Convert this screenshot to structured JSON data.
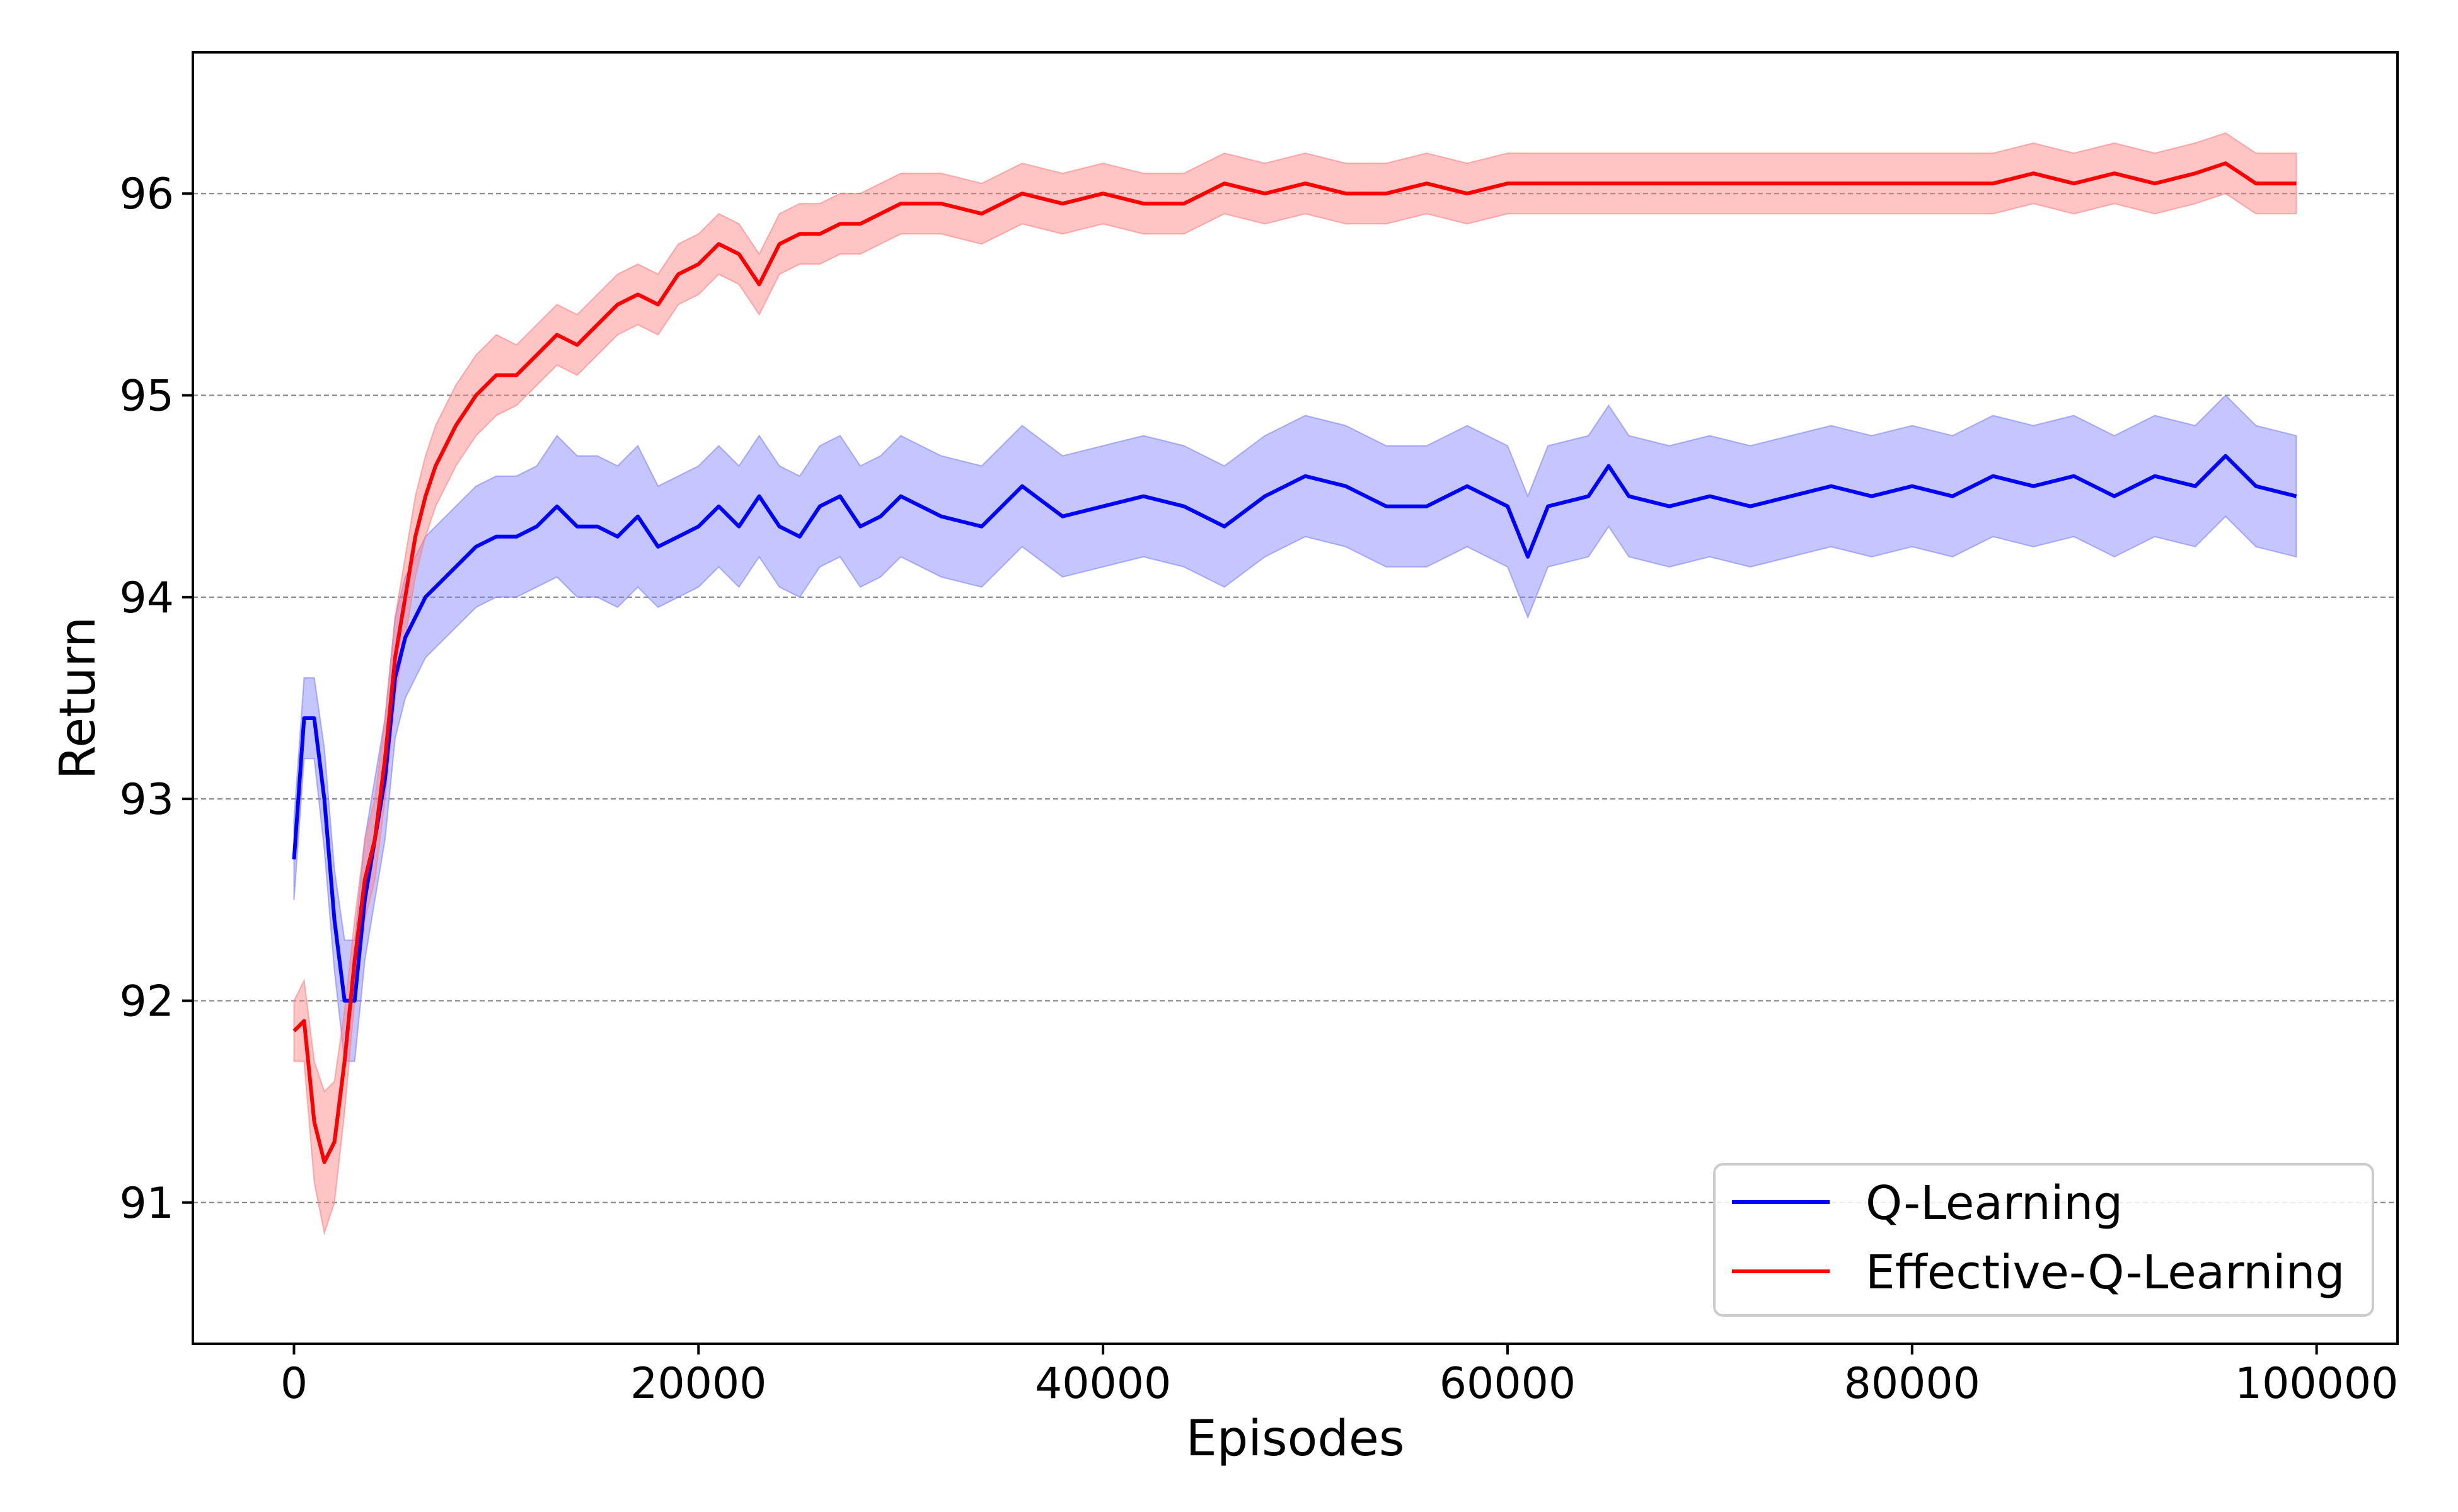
{
  "chart_data": {
    "type": "line",
    "title": "",
    "xlabel": "Episodes",
    "ylabel": "Return",
    "xlim": [
      -5000,
      104000
    ],
    "ylim": [
      90.3,
      96.7
    ],
    "xticks": [
      0,
      20000,
      40000,
      60000,
      80000,
      100000
    ],
    "yticks": [
      91,
      92,
      93,
      94,
      95,
      96
    ],
    "xtick_labels": [
      "0",
      "20000",
      "40000",
      "60000",
      "80000",
      "100000"
    ],
    "ytick_labels": [
      "91",
      "92",
      "93",
      "94",
      "95",
      "96"
    ],
    "grid": "horizontal dashed",
    "legend_position": "lower-right",
    "series": [
      {
        "name": "Q-Learning",
        "color": "#0000ff",
        "band_color": "#7f7fff",
        "x": [
          0,
          500,
          1000,
          1500,
          2000,
          2500,
          3000,
          3500,
          4000,
          4500,
          5000,
          5500,
          6000,
          6500,
          7000,
          8000,
          9000,
          10000,
          11000,
          12000,
          13000,
          14000,
          15000,
          16000,
          17000,
          18000,
          19000,
          20000,
          21000,
          22000,
          23000,
          24000,
          25000,
          26000,
          27000,
          28000,
          29000,
          30000,
          32000,
          34000,
          36000,
          38000,
          40000,
          42000,
          44000,
          46000,
          48000,
          50000,
          52000,
          54000,
          56000,
          58000,
          60000,
          61000,
          62000,
          64000,
          65000,
          66000,
          68000,
          70000,
          72000,
          74000,
          76000,
          78000,
          80000,
          82000,
          84000,
          86000,
          88000,
          90000,
          92000,
          94000,
          95500,
          97000,
          99000
        ],
        "values": [
          92.7,
          93.4,
          93.4,
          93.0,
          92.4,
          92.0,
          92.0,
          92.5,
          92.8,
          93.1,
          93.6,
          93.8,
          93.9,
          94.0,
          94.05,
          94.15,
          94.25,
          94.3,
          94.3,
          94.35,
          94.45,
          94.35,
          94.35,
          94.3,
          94.4,
          94.25,
          94.3,
          94.35,
          94.45,
          94.35,
          94.5,
          94.35,
          94.3,
          94.45,
          94.5,
          94.35,
          94.4,
          94.5,
          94.4,
          94.35,
          94.55,
          94.4,
          94.45,
          94.5,
          94.45,
          94.35,
          94.5,
          94.6,
          94.55,
          94.45,
          94.45,
          94.55,
          94.45,
          94.2,
          94.45,
          94.5,
          94.65,
          94.5,
          94.45,
          94.5,
          94.45,
          94.5,
          94.55,
          94.5,
          94.55,
          94.5,
          94.6,
          94.55,
          94.6,
          94.5,
          94.6,
          94.55,
          94.7,
          94.55,
          94.5
        ],
        "band": [
          0.2,
          0.2,
          0.2,
          0.25,
          0.25,
          0.3,
          0.3,
          0.3,
          0.3,
          0.3,
          0.3,
          0.3,
          0.3,
          0.3,
          0.3,
          0.3,
          0.3,
          0.3,
          0.3,
          0.3,
          0.35,
          0.35,
          0.35,
          0.35,
          0.35,
          0.3,
          0.3,
          0.3,
          0.3,
          0.3,
          0.3,
          0.3,
          0.3,
          0.3,
          0.3,
          0.3,
          0.3,
          0.3,
          0.3,
          0.3,
          0.3,
          0.3,
          0.3,
          0.3,
          0.3,
          0.3,
          0.3,
          0.3,
          0.3,
          0.3,
          0.3,
          0.3,
          0.3,
          0.3,
          0.3,
          0.3,
          0.3,
          0.3,
          0.3,
          0.3,
          0.3,
          0.3,
          0.3,
          0.3,
          0.3,
          0.3,
          0.3,
          0.3,
          0.3,
          0.3,
          0.3,
          0.3,
          0.3,
          0.3,
          0.3
        ]
      },
      {
        "name": "Effective-Q-Learning",
        "color": "#ff0000",
        "band_color": "#ff7f7f",
        "x": [
          0,
          500,
          1000,
          1500,
          2000,
          2500,
          3000,
          3500,
          4000,
          4500,
          5000,
          5500,
          6000,
          6500,
          7000,
          8000,
          9000,
          10000,
          11000,
          12000,
          13000,
          14000,
          15000,
          16000,
          17000,
          18000,
          19000,
          20000,
          21000,
          22000,
          23000,
          24000,
          25000,
          26000,
          27000,
          28000,
          29000,
          30000,
          32000,
          34000,
          36000,
          38000,
          40000,
          42000,
          44000,
          46000,
          48000,
          50000,
          52000,
          54000,
          56000,
          58000,
          60000,
          61000,
          62000,
          64000,
          65000,
          66000,
          68000,
          70000,
          72000,
          74000,
          76000,
          78000,
          80000,
          82000,
          84000,
          86000,
          88000,
          90000,
          92000,
          94000,
          95500,
          97000,
          99000
        ],
        "values": [
          91.85,
          91.9,
          91.4,
          91.2,
          91.3,
          91.7,
          92.2,
          92.6,
          92.8,
          93.2,
          93.7,
          94.0,
          94.3,
          94.5,
          94.65,
          94.85,
          95.0,
          95.1,
          95.1,
          95.2,
          95.3,
          95.25,
          95.35,
          95.45,
          95.5,
          95.45,
          95.6,
          95.65,
          95.75,
          95.7,
          95.55,
          95.75,
          95.8,
          95.8,
          95.85,
          95.85,
          95.9,
          95.95,
          95.95,
          95.9,
          96.0,
          95.95,
          96.0,
          95.95,
          95.95,
          96.05,
          96.0,
          96.05,
          96.0,
          96.0,
          96.05,
          96.0,
          96.05,
          96.05,
          96.05,
          96.05,
          96.05,
          96.05,
          96.05,
          96.05,
          96.05,
          96.05,
          96.05,
          96.05,
          96.05,
          96.05,
          96.05,
          96.1,
          96.05,
          96.1,
          96.05,
          96.1,
          96.15,
          96.05,
          96.05
        ],
        "band": [
          0.15,
          0.2,
          0.3,
          0.35,
          0.3,
          0.25,
          0.2,
          0.2,
          0.2,
          0.2,
          0.2,
          0.2,
          0.2,
          0.2,
          0.2,
          0.2,
          0.2,
          0.2,
          0.15,
          0.15,
          0.15,
          0.15,
          0.15,
          0.15,
          0.15,
          0.15,
          0.15,
          0.15,
          0.15,
          0.15,
          0.15,
          0.15,
          0.15,
          0.15,
          0.15,
          0.15,
          0.15,
          0.15,
          0.15,
          0.15,
          0.15,
          0.15,
          0.15,
          0.15,
          0.15,
          0.15,
          0.15,
          0.15,
          0.15,
          0.15,
          0.15,
          0.15,
          0.15,
          0.15,
          0.15,
          0.15,
          0.15,
          0.15,
          0.15,
          0.15,
          0.15,
          0.15,
          0.15,
          0.15,
          0.15,
          0.15,
          0.15,
          0.15,
          0.15,
          0.15,
          0.15,
          0.15,
          0.15,
          0.15,
          0.15
        ]
      }
    ]
  }
}
